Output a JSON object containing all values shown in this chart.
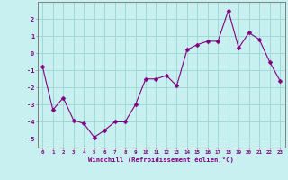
{
  "x": [
    0,
    1,
    2,
    3,
    4,
    5,
    6,
    7,
    8,
    9,
    10,
    11,
    12,
    13,
    14,
    15,
    16,
    17,
    18,
    19,
    20,
    21,
    22,
    23
  ],
  "y": [
    -0.8,
    -3.3,
    -2.6,
    -3.9,
    -4.1,
    -4.9,
    -4.5,
    -4.0,
    -4.0,
    -3.0,
    -1.5,
    -1.5,
    -1.3,
    -1.9,
    0.2,
    0.5,
    0.7,
    0.7,
    2.5,
    0.3,
    1.2,
    0.8,
    -0.5,
    -1.6
  ],
  "line_color": "#800080",
  "marker": "D",
  "marker_size": 2.5,
  "bg_color": "#c8f0f0",
  "grid_color": "#a0d8d8",
  "xlabel": "Windchill (Refroidissement éolien,°C)",
  "ylabel": "",
  "xlim": [
    -0.5,
    23.5
  ],
  "ylim": [
    -5.5,
    3.0
  ],
  "yticks": [
    -5,
    -4,
    -3,
    -2,
    -1,
    0,
    1,
    2
  ],
  "xticks": [
    0,
    1,
    2,
    3,
    4,
    5,
    6,
    7,
    8,
    9,
    10,
    11,
    12,
    13,
    14,
    15,
    16,
    17,
    18,
    19,
    20,
    21,
    22,
    23
  ],
  "tick_color": "#800080",
  "label_color": "#800080",
  "spine_color": "#808080"
}
